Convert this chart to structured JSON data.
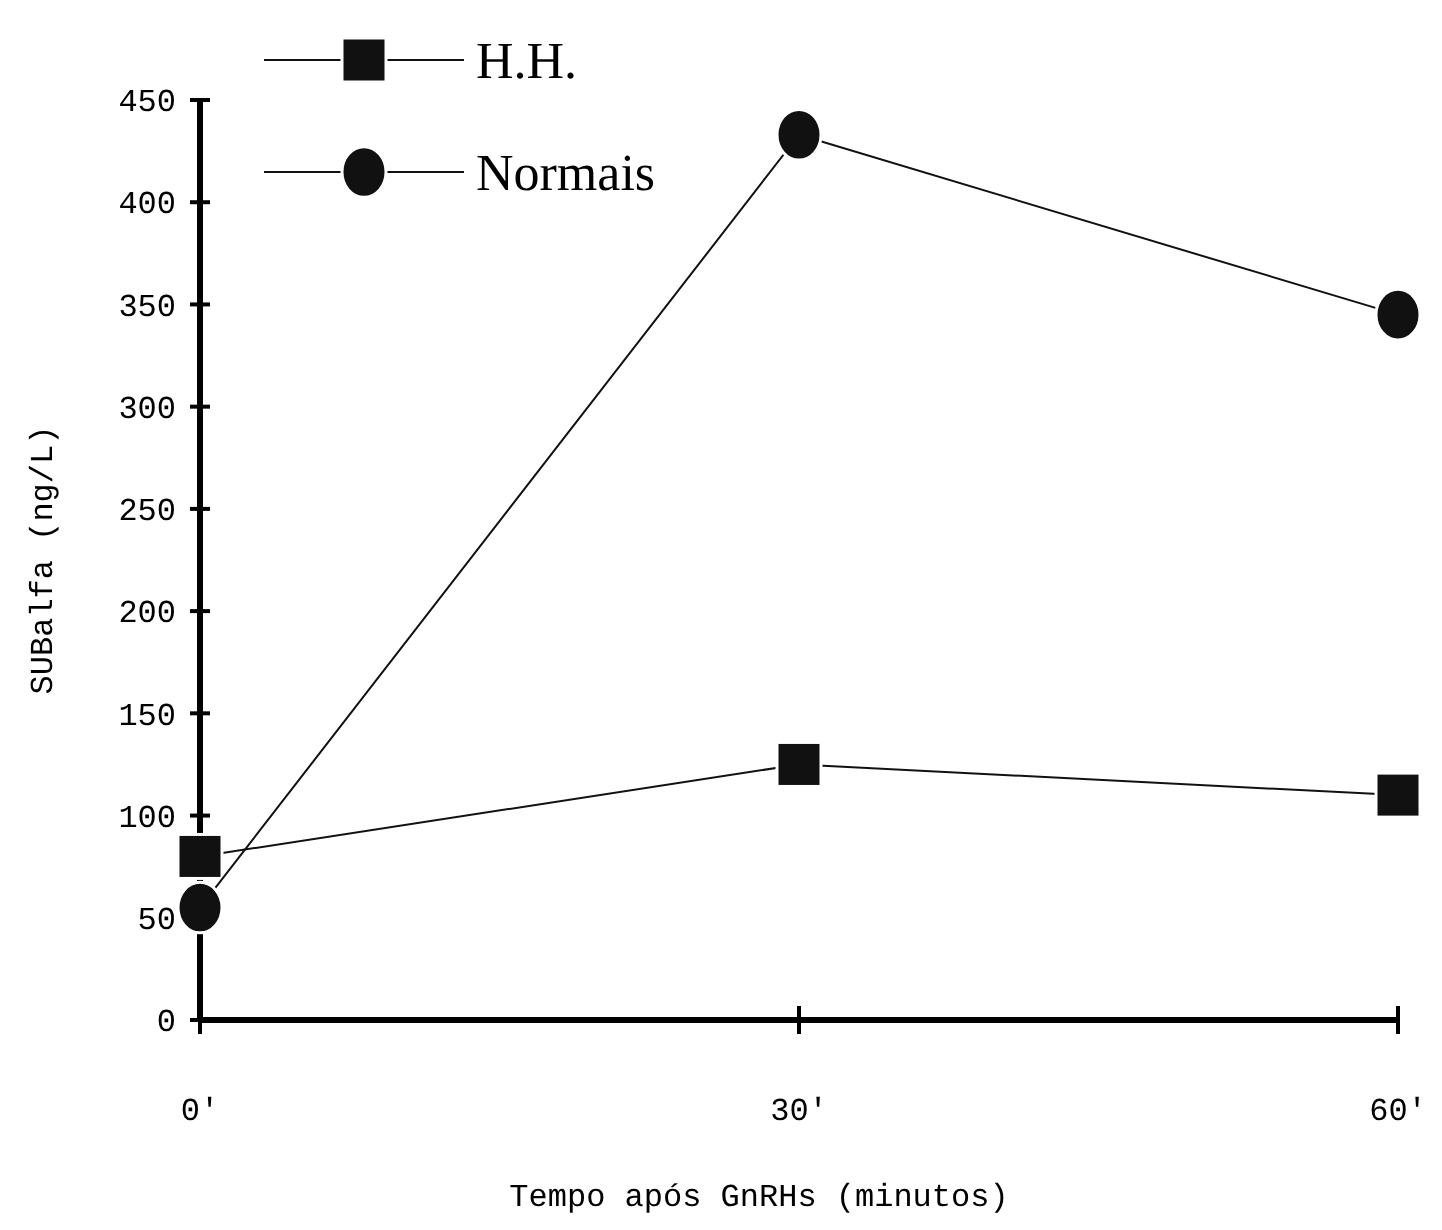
{
  "chart_data": {
    "type": "line",
    "xlabel": "Tempo após GnRHs  (minutos)",
    "ylabel": "SUBalfa (ng/L)",
    "x": [
      0,
      30,
      60
    ],
    "xlim": [
      0,
      60
    ],
    "xticks": [
      {
        "value": 0,
        "label": "0'"
      },
      {
        "value": 30,
        "label": "30'"
      },
      {
        "value": 60,
        "label": "60'"
      }
    ],
    "ylim": [
      0,
      450
    ],
    "yticks": [
      0,
      50,
      100,
      150,
      200,
      250,
      300,
      350,
      400,
      450
    ],
    "legend": "top left",
    "grid": false,
    "line_style": "solid",
    "series": [
      {
        "name": "H.H.",
        "color": "#111111",
        "marker": "square",
        "values": [
          80,
          125,
          110
        ]
      },
      {
        "name": "Normais",
        "color": "#111111",
        "marker": "circle",
        "values": [
          55,
          433,
          345
        ]
      }
    ]
  }
}
